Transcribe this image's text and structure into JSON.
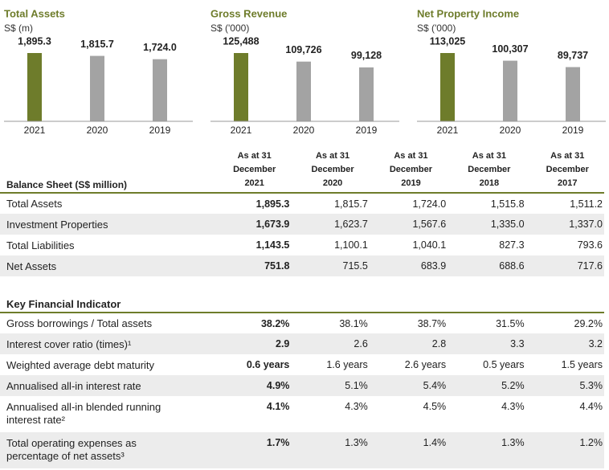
{
  "chart_data": [
    {
      "type": "bar",
      "title": "Total Assets",
      "subtitle": "S$ (m)",
      "categories": [
        "2021",
        "2020",
        "2019"
      ],
      "values": [
        1895.3,
        1815.7,
        1724.0
      ],
      "value_labels": [
        "1,895.3",
        "1,815.7",
        "1,724.0"
      ],
      "colors": [
        "#6e7c2b",
        "#a3a3a3",
        "#a3a3a3"
      ]
    },
    {
      "type": "bar",
      "title": "Gross Revenue",
      "subtitle": "S$ ('000)",
      "categories": [
        "2021",
        "2020",
        "2019"
      ],
      "values": [
        125488,
        109726,
        99128
      ],
      "value_labels": [
        "125,488",
        "109,726",
        "99,128"
      ],
      "colors": [
        "#6e7c2b",
        "#a3a3a3",
        "#a3a3a3"
      ]
    },
    {
      "type": "bar",
      "title": "Net Property Income",
      "subtitle": "S$ ('000)",
      "categories": [
        "2021",
        "2020",
        "2019"
      ],
      "values": [
        113025,
        100307,
        89737
      ],
      "value_labels": [
        "113,025",
        "100,307",
        "89,737"
      ],
      "colors": [
        "#6e7c2b",
        "#a3a3a3",
        "#a3a3a3"
      ]
    }
  ],
  "balance_sheet": {
    "title": "Balance Sheet (S$ million)",
    "columns": [
      "As at 31 December 2021",
      "As at 31 December 2020",
      "As at 31 December 2019",
      "As at 31 December 2018",
      "As at 31 December 2017"
    ],
    "rows": [
      [
        "Total Assets",
        "1,895.3",
        "1,815.7",
        "1,724.0",
        "1,515.8",
        "1,511.2"
      ],
      [
        "Investment Properties",
        "1,673.9",
        "1,623.7",
        "1,567.6",
        "1,335.0",
        "1,337.0"
      ],
      [
        "Total Liabilities",
        "1,143.5",
        "1,100.1",
        "1,040.1",
        "827.3",
        "793.6"
      ],
      [
        "Net Assets",
        "751.8",
        "715.5",
        "683.9",
        "688.6",
        "717.6"
      ]
    ]
  },
  "key_financial_indicator": {
    "title": "Key Financial Indicator",
    "rows": [
      [
        "Gross borrowings / Total assets",
        "38.2%",
        "38.1%",
        "38.7%",
        "31.5%",
        "29.2%"
      ],
      [
        "Interest cover ratio (times)¹",
        "2.9",
        "2.6",
        "2.8",
        "3.3",
        "3.2"
      ],
      [
        "Weighted average debt maturity",
        "0.6 years",
        "1.6 years",
        "2.6 years",
        "0.5 years",
        "1.5 years"
      ],
      [
        "Annualised all-in interest rate",
        "4.9%",
        "5.1%",
        "5.4%",
        "5.2%",
        "5.3%"
      ],
      [
        "Annualised all-in blended running interest rate²",
        "4.1%",
        "4.3%",
        "4.5%",
        "4.3%",
        "4.4%"
      ],
      [
        "Total operating expenses as percentage of net assets³",
        "1.7%",
        "1.3%",
        "1.4%",
        "1.3%",
        "1.2%"
      ]
    ]
  }
}
